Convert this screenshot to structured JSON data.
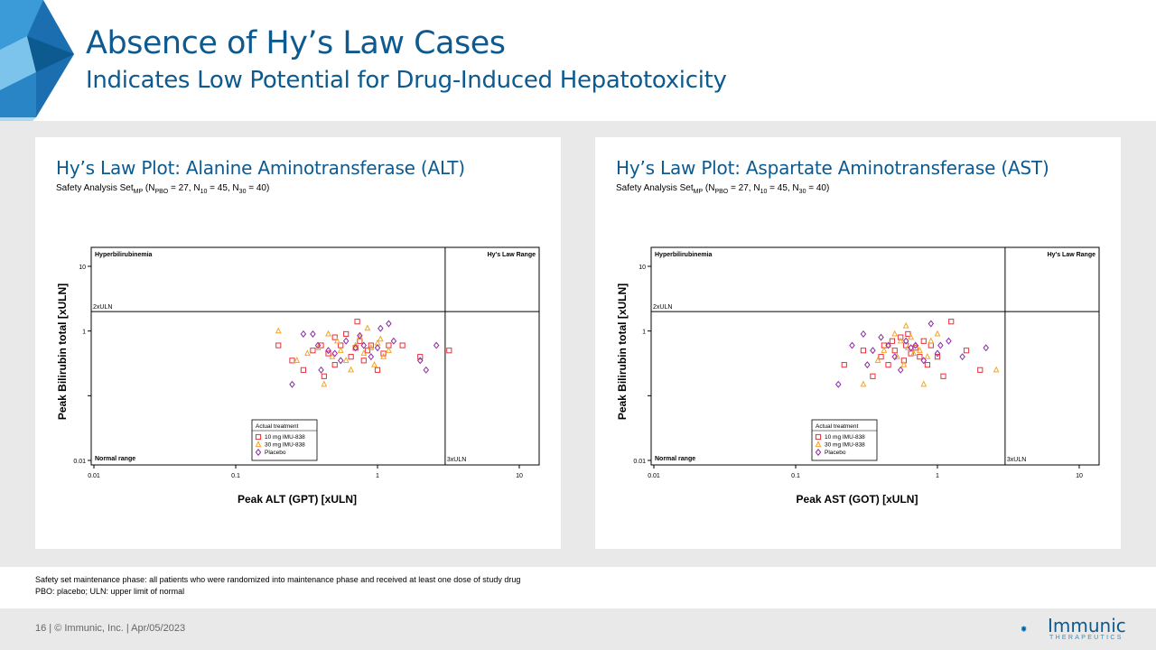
{
  "slide": {
    "title": "Absence of Hy’s Law Cases",
    "subtitle": "Indicates Low Potential for Drug-Induced Hepatotoxicity"
  },
  "panels": [
    {
      "title": "Hy’s Law Plot: Alanine Aminotransferase (ALT)",
      "sub_prefix": "Safety Analysis Set",
      "sub_mp": "MP",
      "sub_open": " (N",
      "sub_pbo": "PBO",
      "sub_pbo_val": " = 27, N",
      "sub_10": "10",
      "sub_10_val": " = 45, N",
      "sub_30": "30",
      "sub_30_val": " = 40)"
    },
    {
      "title": "Hy’s Law Plot: Aspartate Aminotransferase (AST)",
      "sub_prefix": "Safety Analysis Set",
      "sub_mp": "MP",
      "sub_open": " (N",
      "sub_pbo": "PBO",
      "sub_pbo_val": " = 27, N",
      "sub_10": "10",
      "sub_10_val": " = 45, N",
      "sub_30": "30",
      "sub_30_val": " = 40)"
    }
  ],
  "chart_data": [
    {
      "type": "scatter",
      "title": "Hy’s Law Plot: Alanine Aminotransferase (ALT)",
      "xlabel": "Peak ALT (GPT) [xULN]",
      "ylabel": "Peak Bilirubin total [xULN]",
      "x_scale": "log",
      "y_scale": "log",
      "xlim": [
        0.01,
        10
      ],
      "ylim": [
        0.01,
        10
      ],
      "x_ticks": [
        "0.01",
        "0.1",
        "1",
        "10"
      ],
      "y_ticks": [
        "0.01",
        "1",
        "10"
      ],
      "reference_lines": {
        "x": 3,
        "y": 2,
        "x_label": "3xULN",
        "y_label": "2xULN"
      },
      "region_labels": {
        "top_left": "Hyperbilirubinemia",
        "top_right": "Hy's Law Range",
        "bottom_left": "Normal range"
      },
      "legend": {
        "title": "Actual treatment",
        "position": "bottom-center"
      },
      "series": [
        {
          "name": "10 mg IMU-838",
          "marker": "square",
          "color": "#e8303a",
          "x": [
            0.2,
            0.25,
            0.3,
            0.35,
            0.4,
            0.42,
            0.45,
            0.5,
            0.5,
            0.55,
            0.6,
            0.65,
            0.7,
            0.72,
            0.75,
            0.8,
            0.85,
            0.9,
            1.0,
            1.1,
            1.2,
            1.5,
            2.0,
            3.2
          ],
          "y": [
            0.6,
            0.35,
            0.25,
            0.5,
            0.6,
            0.2,
            0.45,
            0.3,
            0.8,
            0.6,
            0.9,
            0.4,
            0.55,
            1.4,
            0.7,
            0.35,
            0.5,
            0.6,
            0.25,
            0.45,
            0.6,
            0.6,
            0.4,
            0.5
          ]
        },
        {
          "name": "30 mg IMU-838",
          "marker": "triangle",
          "color": "#f5a623",
          "x": [
            0.2,
            0.27,
            0.32,
            0.38,
            0.42,
            0.45,
            0.48,
            0.52,
            0.55,
            0.6,
            0.65,
            0.7,
            0.75,
            0.8,
            0.85,
            0.9,
            0.95,
            1.0,
            1.05,
            1.1,
            1.2
          ],
          "y": [
            1.0,
            0.35,
            0.45,
            0.55,
            0.15,
            0.9,
            0.4,
            0.7,
            0.5,
            0.35,
            0.25,
            0.6,
            0.8,
            0.45,
            1.1,
            0.55,
            0.3,
            0.65,
            0.75,
            0.4,
            0.5
          ]
        },
        {
          "name": "Placebo",
          "marker": "diamond",
          "color": "#8b2aa5",
          "x": [
            0.25,
            0.3,
            0.35,
            0.38,
            0.4,
            0.45,
            0.5,
            0.55,
            0.6,
            0.7,
            0.75,
            0.8,
            0.9,
            1.0,
            1.05,
            1.2,
            1.3,
            2.0,
            2.2,
            2.6
          ],
          "y": [
            0.15,
            0.9,
            0.9,
            0.6,
            0.25,
            0.5,
            0.45,
            0.35,
            0.7,
            0.55,
            0.85,
            0.6,
            0.4,
            0.55,
            1.1,
            1.3,
            0.7,
            0.35,
            0.25,
            0.6
          ]
        }
      ]
    },
    {
      "type": "scatter",
      "title": "Hy’s Law Plot: Aspartate Aminotransferase (AST)",
      "xlabel": "Peak AST (GOT) [xULN]",
      "ylabel": "Peak Bilirubin total [xULN]",
      "x_scale": "log",
      "y_scale": "log",
      "xlim": [
        0.01,
        10
      ],
      "ylim": [
        0.01,
        10
      ],
      "x_ticks": [
        "0.01",
        "0.1",
        "1",
        "10"
      ],
      "y_ticks": [
        "0.01",
        "1",
        "10"
      ],
      "reference_lines": {
        "x": 3,
        "y": 2,
        "x_label": "3xULN",
        "y_label": "2xULN"
      },
      "region_labels": {
        "top_left": "Hyperbilirubinemia",
        "top_right": "Hy's Law Range",
        "bottom_left": "Normal range"
      },
      "legend": {
        "title": "Actual treatment",
        "position": "bottom-center"
      },
      "series": [
        {
          "name": "10 mg IMU-838",
          "marker": "square",
          "color": "#e8303a",
          "x": [
            0.22,
            0.3,
            0.35,
            0.4,
            0.42,
            0.45,
            0.48,
            0.5,
            0.55,
            0.58,
            0.6,
            0.62,
            0.65,
            0.7,
            0.75,
            0.8,
            0.85,
            0.9,
            1.0,
            1.1,
            1.25,
            1.6,
            2.0
          ],
          "y": [
            0.3,
            0.5,
            0.2,
            0.4,
            0.6,
            0.3,
            0.7,
            0.5,
            0.8,
            0.35,
            0.6,
            0.9,
            0.45,
            0.55,
            0.4,
            0.7,
            0.3,
            0.6,
            0.4,
            0.2,
            1.4,
            0.5,
            0.25
          ]
        },
        {
          "name": "30 mg IMU-838",
          "marker": "triangle",
          "color": "#f5a623",
          "x": [
            0.3,
            0.38,
            0.42,
            0.45,
            0.5,
            0.52,
            0.55,
            0.58,
            0.6,
            0.62,
            0.65,
            0.68,
            0.7,
            0.75,
            0.8,
            0.85,
            0.9,
            1.0,
            2.6
          ],
          "y": [
            0.15,
            0.35,
            0.5,
            0.6,
            0.9,
            0.4,
            0.7,
            0.3,
            1.2,
            0.55,
            0.8,
            0.45,
            0.6,
            0.5,
            0.15,
            0.4,
            0.7,
            0.9,
            0.25
          ]
        },
        {
          "name": "Placebo",
          "marker": "diamond",
          "color": "#8b2aa5",
          "x": [
            0.2,
            0.25,
            0.3,
            0.32,
            0.35,
            0.4,
            0.45,
            0.5,
            0.55,
            0.6,
            0.65,
            0.7,
            0.8,
            0.9,
            1.0,
            1.05,
            1.2,
            1.5,
            2.2
          ],
          "y": [
            0.15,
            0.6,
            0.9,
            0.3,
            0.5,
            0.8,
            0.6,
            0.4,
            0.25,
            0.7,
            0.55,
            0.6,
            0.35,
            1.3,
            0.45,
            0.6,
            0.7,
            0.4,
            0.55
          ]
        }
      ]
    }
  ],
  "footnotes": {
    "line1": "Safety set maintenance phase: all patients who were randomized into maintenance phase and received at least one dose of study drug",
    "line2": "PBO: placebo; ULN: upper limit of normal"
  },
  "footer": {
    "text": "16   |  © Immunic, Inc.   | Apr/05/2023",
    "logo_name": "Immunic",
    "logo_sub": "THERAPEUTICS"
  },
  "colors": {
    "brand": "#0c5a8f",
    "accent": "#2a8fd0",
    "ten_mg": "#e8303a",
    "thirty_mg": "#f5a623",
    "placebo": "#8b2aa5"
  }
}
